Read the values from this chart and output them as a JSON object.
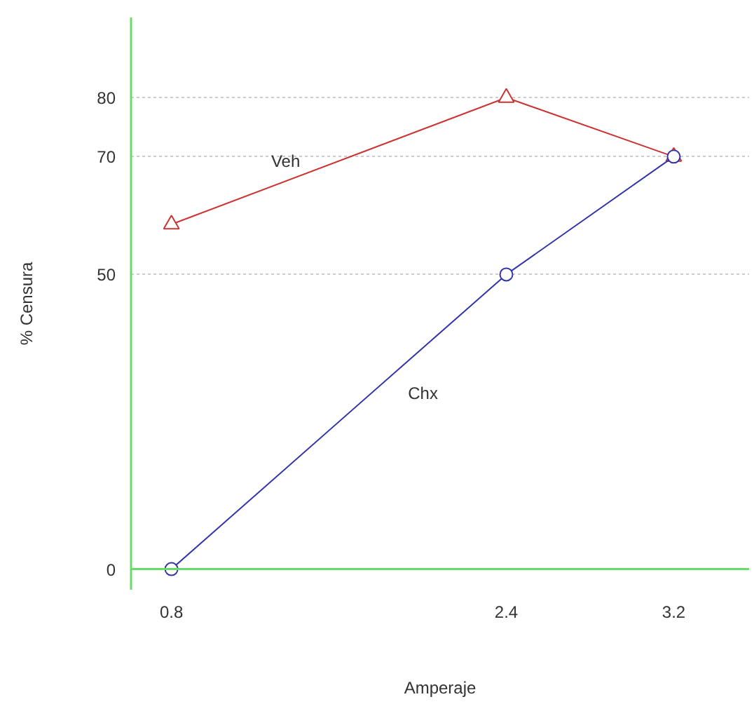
{
  "chart_data": {
    "type": "line",
    "xlabel": "Amperaje",
    "ylabel": "% Censura",
    "x": [
      0.8,
      2.4,
      3.2
    ],
    "series": [
      {
        "name": "Veh",
        "color": "#cc3333",
        "values": [
          58.5,
          80,
          70
        ],
        "marker": "triangle"
      },
      {
        "name": "Chx",
        "color": "#3333aa",
        "values": [
          0,
          50,
          70
        ],
        "marker": "circle"
      }
    ],
    "xlim": [
      0.607,
      3.56
    ],
    "ylim": [
      -3.5,
      93.6
    ],
    "xticks": [
      0.8,
      2.4,
      3.2
    ],
    "yticks": [
      0,
      50,
      70,
      80
    ],
    "grid": "y"
  }
}
